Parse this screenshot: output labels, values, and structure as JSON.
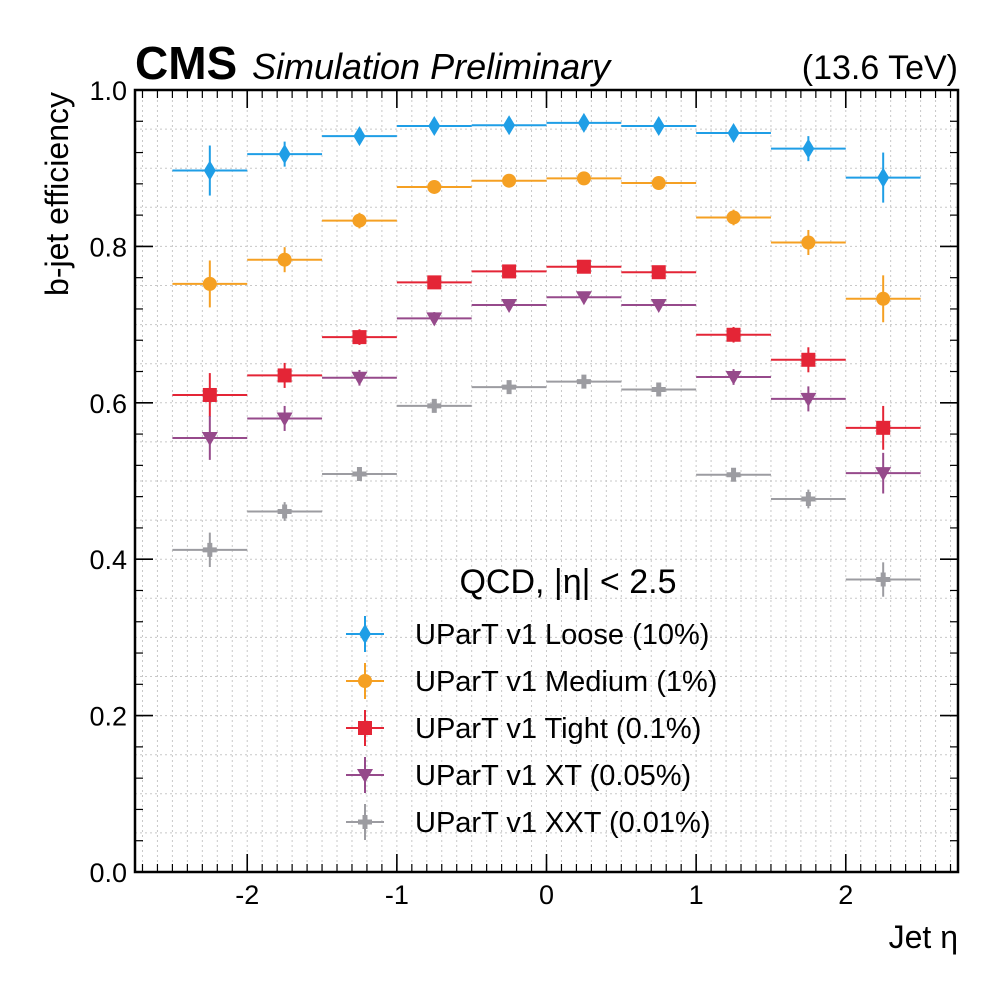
{
  "header": {
    "experiment": "CMS",
    "label": "Simulation Preliminary",
    "energy": "(13.6 TeV)"
  },
  "chart_data": {
    "type": "scatter",
    "title": "",
    "xlabel": "Jet η",
    "ylabel": "b-jet efficiency",
    "xlim": [
      -2.75,
      2.75
    ],
    "ylim": [
      0.0,
      1.0
    ],
    "xticks": [
      -2,
      -1,
      0,
      1,
      2
    ],
    "xtick_labels": [
      "-2",
      "-1",
      "0",
      "1",
      "2"
    ],
    "yticks": [
      0.0,
      0.2,
      0.4,
      0.6,
      0.8,
      1.0
    ],
    "ytick_labels": [
      "0.0",
      "0.2",
      "0.4",
      "0.6",
      "0.8",
      "1.0"
    ],
    "grid": true,
    "x": [
      -2.25,
      -1.75,
      -1.25,
      -0.75,
      -0.25,
      0.25,
      0.75,
      1.25,
      1.75,
      2.25
    ],
    "x_halfwidth": 0.25,
    "legend": {
      "title": "QCD, |η| < 2.5",
      "position": "lower-center"
    },
    "series": [
      {
        "name": "UParT v1 Loose (10%)",
        "color": "#1f9ee6",
        "marker": "diamond",
        "values": [
          0.897,
          0.918,
          0.941,
          0.954,
          0.955,
          0.958,
          0.954,
          0.945,
          0.925,
          0.888
        ],
        "errors": [
          0.032,
          0.016,
          0.01,
          0.008,
          0.008,
          0.008,
          0.008,
          0.01,
          0.016,
          0.032
        ]
      },
      {
        "name": "UParT v1 Medium (1%)",
        "color": "#f5a023",
        "marker": "circle",
        "values": [
          0.752,
          0.783,
          0.833,
          0.876,
          0.884,
          0.887,
          0.881,
          0.837,
          0.805,
          0.733
        ],
        "errors": [
          0.03,
          0.016,
          0.01,
          0.008,
          0.007,
          0.007,
          0.007,
          0.01,
          0.016,
          0.03
        ]
      },
      {
        "name": "UParT v1 Tight (0.1%)",
        "color": "#e42536",
        "marker": "square",
        "values": [
          0.61,
          0.635,
          0.684,
          0.754,
          0.768,
          0.774,
          0.767,
          0.687,
          0.655,
          0.568
        ],
        "errors": [
          0.028,
          0.016,
          0.01,
          0.008,
          0.007,
          0.007,
          0.007,
          0.01,
          0.016,
          0.028
        ]
      },
      {
        "name": "UParT v1 XT (0.05%)",
        "color": "#964a8b",
        "marker": "triangle-down",
        "values": [
          0.555,
          0.58,
          0.632,
          0.708,
          0.725,
          0.735,
          0.725,
          0.633,
          0.605,
          0.51
        ],
        "errors": [
          0.028,
          0.016,
          0.01,
          0.008,
          0.007,
          0.007,
          0.007,
          0.01,
          0.016,
          0.026
        ]
      },
      {
        "name": "UParT v1 XXT (0.01%)",
        "color": "#9c9ca1",
        "marker": "plus",
        "values": [
          0.412,
          0.461,
          0.509,
          0.596,
          0.62,
          0.627,
          0.617,
          0.508,
          0.477,
          0.374
        ],
        "errors": [
          0.022,
          0.012,
          0.008,
          0.007,
          0.006,
          0.006,
          0.006,
          0.008,
          0.012,
          0.022
        ]
      }
    ]
  }
}
